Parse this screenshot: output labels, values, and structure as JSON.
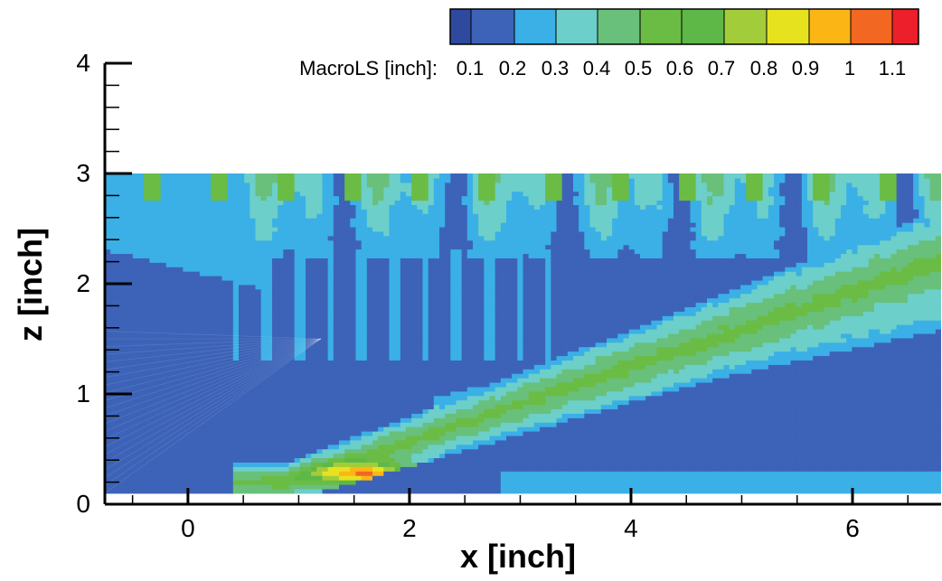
{
  "chart_data": {
    "type": "heatmap",
    "xlabel": "x [inch]",
    "ylabel": "z [inch]",
    "xlim": [
      -0.75,
      6.8
    ],
    "ylim": [
      0,
      4
    ],
    "data_ylim": [
      0.1,
      3.0
    ],
    "xticks": [
      0,
      2,
      4,
      6
    ],
    "yticks": [
      0,
      1,
      2,
      3,
      4
    ],
    "grid": false,
    "colorbar": {
      "label": "MacroLS [inch]:",
      "placement": "top-right",
      "levels": [
        0.1,
        0.2,
        0.3,
        0.4,
        0.5,
        0.6,
        0.7,
        0.8,
        0.9,
        1,
        1.1
      ],
      "level_labels": [
        "0.1",
        "0.2",
        "0.3",
        "0.4",
        "0.5",
        "0.6",
        "0.7",
        "0.8",
        "0.9",
        "1",
        "1.1"
      ],
      "colors": [
        "#2e4a9e",
        "#3d63b8",
        "#3ab0e6",
        "#6ccfc9",
        "#68c07a",
        "#6abc45",
        "#5db848",
        "#a3cc3a",
        "#e6e31e",
        "#fbb616",
        "#f26722",
        "#ec1f2a"
      ]
    },
    "background_level": 0.15,
    "features": [
      {
        "region": "bottom jet band along diagonal",
        "value": 0.3
      },
      {
        "region": "upper diagonal band x 2.5-6.8, z 1.0-1.9",
        "value": 0.3
      },
      {
        "region": "peak near x 1.3-2.0, z 0.2-0.35",
        "value": 0.9
      },
      {
        "region": "upper boundary streaks z 2.2-3.0",
        "value": 0.35
      },
      {
        "region": "top left layer z 2.3-3.0",
        "value": 0.25
      }
    ]
  }
}
